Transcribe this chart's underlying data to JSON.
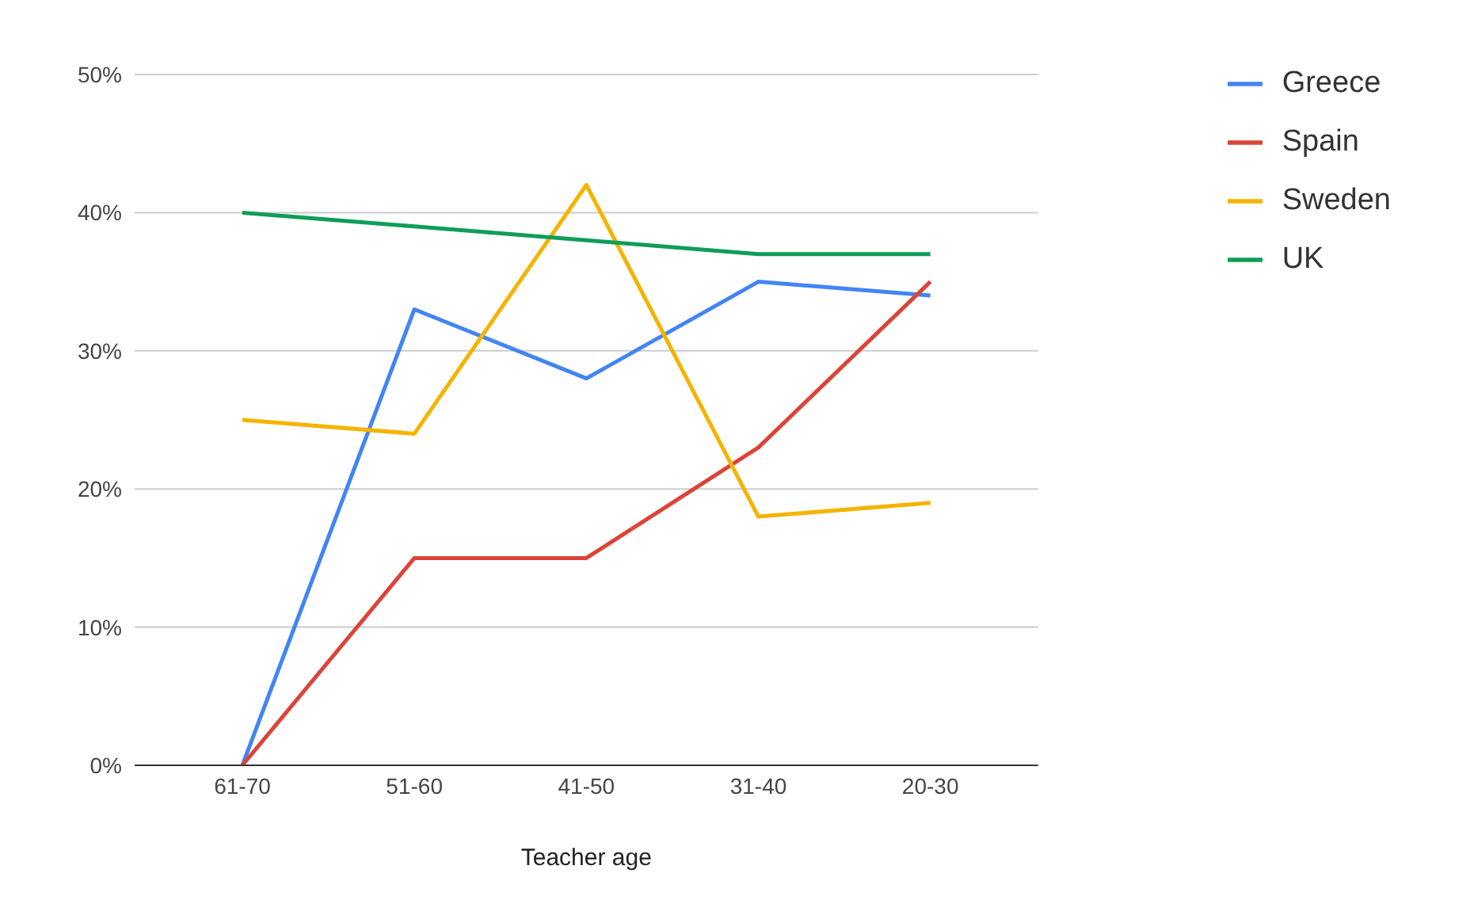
{
  "chart_data": {
    "type": "line",
    "xlabel": "Teacher age",
    "categories": [
      "61-70",
      "51-60",
      "41-50",
      "31-40",
      "20-30"
    ],
    "series": [
      {
        "name": "Greece",
        "color": "#4285f4",
        "values": [
          0,
          33,
          28,
          35,
          34
        ]
      },
      {
        "name": "Spain",
        "color": "#db4437",
        "values": [
          0,
          15,
          15,
          23,
          35
        ]
      },
      {
        "name": "Sweden",
        "color": "#f4b400",
        "values": [
          25,
          24,
          42,
          18,
          19
        ]
      },
      {
        "name": "UK",
        "color": "#0f9d58",
        "values": [
          40,
          39,
          38,
          37,
          37
        ]
      }
    ],
    "ylim": [
      0,
      50
    ],
    "yticks": [
      {
        "value": 0,
        "label": "0%"
      },
      {
        "value": 10,
        "label": "10%"
      },
      {
        "value": 20,
        "label": "20%"
      },
      {
        "value": 30,
        "label": "30%"
      },
      {
        "value": 40,
        "label": "40%"
      },
      {
        "value": 50,
        "label": "50%"
      }
    ],
    "grid": "y",
    "legend": "top right",
    "marker": "none",
    "line_style": "solid"
  }
}
